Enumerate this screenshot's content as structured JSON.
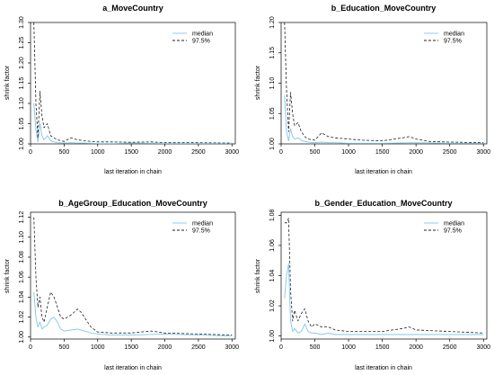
{
  "chart_data": [
    {
      "type": "line",
      "title": "a_MoveCountry",
      "xlabel": "last iteration in chain",
      "ylabel": "shrink factor",
      "xlim": [
        0,
        3050
      ],
      "ylim": [
        1.0,
        1.3
      ],
      "xticks": [
        0,
        500,
        1000,
        1500,
        2000,
        2500,
        3000
      ],
      "yticks": [
        1.0,
        1.05,
        1.1,
        1.15,
        1.2,
        1.25,
        1.3
      ],
      "tick_decimals": 2,
      "legend": {
        "position": "top-right",
        "entries": [
          "median",
          "97.5%"
        ]
      },
      "series": [
        {
          "name": "median",
          "color": "#7fc8e8",
          "dash": "solid",
          "x": [
            50,
            80,
            110,
            140,
            170,
            200,
            250,
            300,
            350,
            400,
            500,
            600,
            700,
            800,
            1000,
            1200,
            1500,
            2000,
            2500,
            3000
          ],
          "y": [
            1.1,
            1.035,
            1.005,
            1.05,
            1.02,
            1.01,
            1.02,
            1.008,
            1.005,
            1.003,
            1.002,
            1.003,
            1.002,
            1.002,
            1.001,
            1.001,
            1.002,
            1.001,
            1.001,
            1.001
          ]
        },
        {
          "name": "97.5%",
          "color": "#222222",
          "dash": "dashed",
          "x": [
            50,
            80,
            110,
            140,
            170,
            200,
            250,
            300,
            350,
            400,
            500,
            600,
            700,
            800,
            900,
            1000,
            1200,
            1500,
            1800,
            2000,
            2500,
            3000
          ],
          "y": [
            1.3,
            1.1,
            1.015,
            1.13,
            1.07,
            1.04,
            1.05,
            1.02,
            1.015,
            1.01,
            1.006,
            1.015,
            1.01,
            1.008,
            1.006,
            1.005,
            1.005,
            1.004,
            1.005,
            1.003,
            1.003,
            1.002
          ]
        }
      ]
    },
    {
      "type": "line",
      "title": "b_Education_MoveCountry",
      "xlabel": "last iteration in chain",
      "ylabel": "shrink factor",
      "xlim": [
        0,
        3050
      ],
      "ylim": [
        1.0,
        1.2
      ],
      "xticks": [
        0,
        500,
        1000,
        1500,
        2000,
        2500,
        3000
      ],
      "yticks": [
        1.0,
        1.05,
        1.1,
        1.15,
        1.2
      ],
      "tick_decimals": 2,
      "legend": {
        "position": "top-right",
        "entries": [
          "median",
          "97.5%"
        ]
      },
      "series": [
        {
          "name": "median",
          "color": "#7fc8e8",
          "dash": "solid",
          "x": [
            50,
            80,
            110,
            140,
            170,
            200,
            250,
            300,
            350,
            400,
            500,
            600,
            700,
            800,
            1000,
            1500,
            2000,
            2500,
            3000
          ],
          "y": [
            1.08,
            1.02,
            1.005,
            1.025,
            1.012,
            1.008,
            1.01,
            1.006,
            1.004,
            1.003,
            1.002,
            1.003,
            1.002,
            1.002,
            1.001,
            1.001,
            1.002,
            1.001,
            1.001
          ]
        },
        {
          "name": "97.5%",
          "color": "#222222",
          "dash": "dashed",
          "x": [
            50,
            80,
            110,
            140,
            170,
            200,
            250,
            300,
            350,
            400,
            500,
            600,
            700,
            800,
            1000,
            1200,
            1500,
            1800,
            1900,
            2000,
            2200,
            2500,
            3000
          ],
          "y": [
            1.2,
            1.09,
            1.02,
            1.085,
            1.05,
            1.03,
            1.035,
            1.02,
            1.012,
            1.008,
            1.006,
            1.018,
            1.012,
            1.01,
            1.008,
            1.006,
            1.005,
            1.01,
            1.012,
            1.008,
            1.004,
            1.003,
            1.002
          ]
        }
      ]
    },
    {
      "type": "line",
      "title": "b_AgeGroup_Education_MoveCountry",
      "xlabel": "last iteration in chain",
      "ylabel": "shrink factor",
      "xlim": [
        0,
        3050
      ],
      "ylim": [
        0.998,
        1.125
      ],
      "xticks": [
        0,
        500,
        1000,
        1500,
        2000,
        2500,
        3000
      ],
      "yticks": [
        1.0,
        1.02,
        1.04,
        1.06,
        1.08,
        1.1,
        1.12
      ],
      "tick_decimals": 2,
      "legend": {
        "position": "top-right",
        "entries": [
          "median",
          "97.5%"
        ]
      },
      "series": [
        {
          "name": "median",
          "color": "#7fc8e8",
          "dash": "solid",
          "x": [
            50,
            80,
            110,
            140,
            170,
            200,
            250,
            300,
            350,
            400,
            450,
            500,
            600,
            700,
            800,
            900,
            1000,
            1200,
            1500,
            2000,
            2500,
            3000
          ],
          "y": [
            1.045,
            1.02,
            1.01,
            1.015,
            1.008,
            1.01,
            1.012,
            1.018,
            1.02,
            1.015,
            1.008,
            1.006,
            1.007,
            1.008,
            1.006,
            1.004,
            1.003,
            1.002,
            1.002,
            1.003,
            1.002,
            1.001
          ]
        },
        {
          "name": "97.5%",
          "color": "#222222",
          "dash": "dashed",
          "x": [
            50,
            80,
            110,
            140,
            170,
            200,
            250,
            300,
            350,
            400,
            450,
            500,
            600,
            700,
            750,
            800,
            900,
            1000,
            1200,
            1500,
            1800,
            2000,
            2500,
            3000
          ],
          "y": [
            1.12,
            1.06,
            1.03,
            1.04,
            1.02,
            1.015,
            1.03,
            1.045,
            1.04,
            1.03,
            1.02,
            1.018,
            1.022,
            1.028,
            1.025,
            1.02,
            1.01,
            1.005,
            1.004,
            1.004,
            1.006,
            1.004,
            1.003,
            1.002
          ]
        }
      ]
    },
    {
      "type": "line",
      "title": "b_Gender_Education_MoveCountry",
      "xlabel": "last iteration in chain",
      "ylabel": "shrink factor",
      "xlim": [
        0,
        3050
      ],
      "ylim": [
        0.998,
        1.082
      ],
      "xticks": [
        0,
        500,
        1000,
        1500,
        2000,
        2500,
        3000
      ],
      "yticks": [
        1.0,
        1.02,
        1.04,
        1.06,
        1.08
      ],
      "tick_decimals": 2,
      "legend": {
        "position": "top-right",
        "entries": [
          "median",
          "97.5%"
        ]
      },
      "series": [
        {
          "name": "median",
          "color": "#7fc8e8",
          "dash": "solid",
          "x": [
            50,
            80,
            110,
            140,
            170,
            200,
            250,
            300,
            350,
            400,
            450,
            500,
            600,
            700,
            800,
            1000,
            1500,
            2000,
            2500,
            3000
          ],
          "y": [
            1.025,
            1.04,
            1.048,
            1.01,
            1.003,
            1.005,
            1.002,
            1.003,
            1.008,
            1.003,
            1.002,
            1.002,
            1.001,
            1.002,
            1.001,
            1.001,
            1.001,
            1.001,
            1.001,
            1.001
          ]
        },
        {
          "name": "97.5%",
          "color": "#222222",
          "dash": "dashed",
          "x": [
            50,
            80,
            110,
            140,
            170,
            200,
            250,
            300,
            350,
            400,
            450,
            500,
            600,
            700,
            800,
            1000,
            1200,
            1500,
            1800,
            1900,
            2000,
            2500,
            3000
          ],
          "y": [
            1.075,
            1.075,
            1.078,
            1.03,
            1.01,
            1.017,
            1.01,
            1.015,
            1.018,
            1.01,
            1.006,
            1.008,
            1.006,
            1.006,
            1.004,
            1.003,
            1.003,
            1.003,
            1.005,
            1.006,
            1.004,
            1.003,
            1.002
          ]
        }
      ]
    }
  ]
}
